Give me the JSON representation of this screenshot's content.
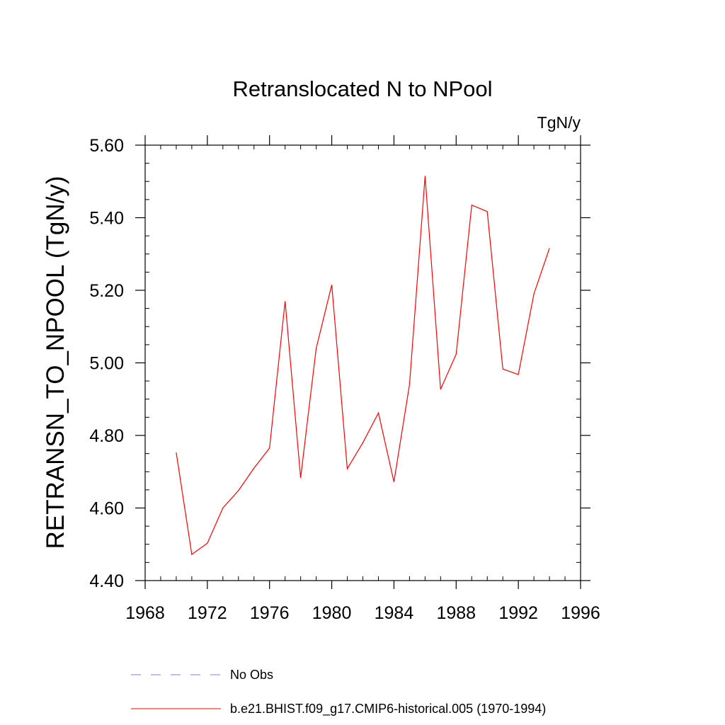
{
  "chart_data": {
    "type": "line",
    "title": "Retranslocated N to NPool",
    "units": "TgN/y",
    "xlabel": "",
    "ylabel": "RETRANSN_TO_NPOOL  (TgN/y)",
    "xlim": [
      1968,
      1996
    ],
    "ylim": [
      4.4,
      5.6
    ],
    "x_ticks": [
      1968,
      1972,
      1976,
      1980,
      1984,
      1988,
      1992,
      1996
    ],
    "y_ticks": [
      "4.40",
      "4.60",
      "4.80",
      "5.00",
      "5.20",
      "5.40",
      "5.60"
    ],
    "series": [
      {
        "name": "b.e21.BHIST.f09_g17.CMIP6-historical.005 (1970-1994)",
        "color": "#ff0000",
        "x": [
          1970,
          1971,
          1972,
          1973,
          1974,
          1975,
          1976,
          1977,
          1978,
          1979,
          1980,
          1981,
          1982,
          1983,
          1984,
          1985,
          1986,
          1987,
          1988,
          1989,
          1990,
          1991,
          1992,
          1993,
          1994
        ],
        "values": [
          4.753,
          4.472,
          4.503,
          4.6,
          4.648,
          4.71,
          4.765,
          5.17,
          4.683,
          5.04,
          5.215,
          4.708,
          4.78,
          4.862,
          4.672,
          4.94,
          5.515,
          4.927,
          5.024,
          5.435,
          5.417,
          4.983,
          4.968,
          5.19,
          5.316
        ]
      }
    ],
    "legend": [
      {
        "label": "No Obs",
        "color": "#8080cc",
        "style": "dashed"
      },
      {
        "label": "b.e21.BHIST.f09_g17.CMIP6-historical.005 (1970-1994)",
        "color": "#ff0000",
        "style": "solid"
      }
    ],
    "legend_position": "bottom"
  }
}
